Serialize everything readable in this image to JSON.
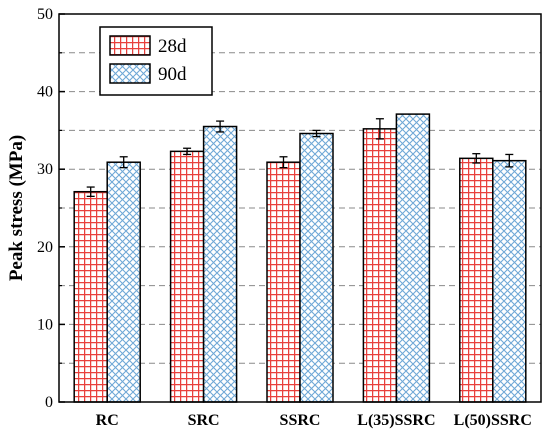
{
  "chart_data": {
    "type": "bar",
    "title": "",
    "xlabel": "",
    "ylabel": "Peak stress (MPa)",
    "ylim": [
      0,
      50
    ],
    "yticks": [
      0,
      10,
      20,
      30,
      40,
      50
    ],
    "grid": "horizontal dashed at 5 MPa intervals",
    "legend_position": "top-left",
    "categories": [
      "RC",
      "SRC",
      "SSRC",
      "L(35)SSRC",
      "L(50)SSRC"
    ],
    "series": [
      {
        "name": "28d",
        "values": [
          27.1,
          32.3,
          30.9,
          35.2,
          31.4
        ],
        "errors": [
          0.6,
          0.4,
          0.7,
          1.3,
          0.6
        ],
        "color": "#e8403c",
        "pattern": "grid"
      },
      {
        "name": "90d",
        "values": [
          30.9,
          35.5,
          34.6,
          37.1,
          31.1
        ],
        "errors": [
          0.7,
          0.7,
          0.4,
          0.0,
          0.8
        ],
        "color": "#6fa8d6",
        "pattern": "crosshatch"
      }
    ]
  }
}
